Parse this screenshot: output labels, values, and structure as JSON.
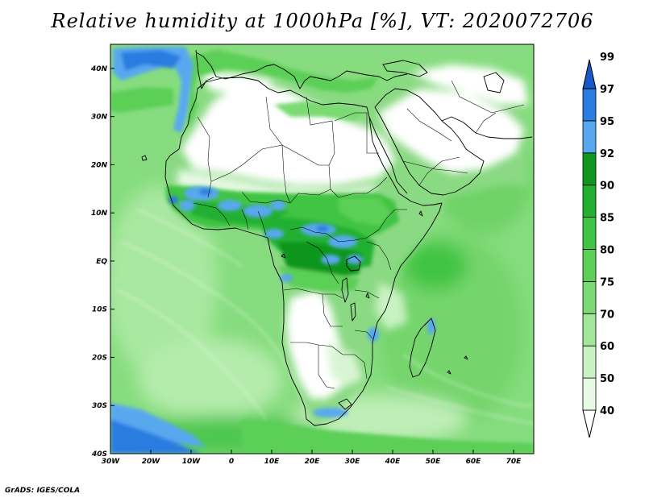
{
  "title": "Relative humidity at 1000hPa [%], VT: 2020072706",
  "credit": "GrADS: IGES/COLA",
  "map": {
    "type": "filled-contour-map",
    "lon_range": [
      -30,
      75
    ],
    "lat_range": [
      -40,
      45
    ],
    "lon_ticks": [
      {
        "value": -30,
        "label": "30W"
      },
      {
        "value": -20,
        "label": "20W"
      },
      {
        "value": -10,
        "label": "10W"
      },
      {
        "value": 0,
        "label": "0"
      },
      {
        "value": 10,
        "label": "10E"
      },
      {
        "value": 20,
        "label": "20E"
      },
      {
        "value": 30,
        "label": "30E"
      },
      {
        "value": 40,
        "label": "40E"
      },
      {
        "value": 50,
        "label": "50E"
      },
      {
        "value": 60,
        "label": "60E"
      },
      {
        "value": 70,
        "label": "70E"
      }
    ],
    "lat_ticks": [
      {
        "value": 40,
        "label": "40N"
      },
      {
        "value": 30,
        "label": "30N"
      },
      {
        "value": 20,
        "label": "20N"
      },
      {
        "value": 10,
        "label": "10N"
      },
      {
        "value": 0,
        "label": "EQ"
      },
      {
        "value": -10,
        "label": "10S"
      },
      {
        "value": -20,
        "label": "20S"
      },
      {
        "value": -30,
        "label": "30S"
      },
      {
        "value": -40,
        "label": "40S"
      }
    ]
  },
  "colorbar": {
    "levels": [
      "40",
      "50",
      "60",
      "70",
      "75",
      "80",
      "85",
      "90",
      "92",
      "95",
      "97",
      "99"
    ],
    "colors": [
      "#ffffff",
      "#e8fae6",
      "#c8f2c2",
      "#a2e69a",
      "#7cda73",
      "#5ccf57",
      "#3fc443",
      "#23b030",
      "#10961d",
      "#58a8f0",
      "#2a7ce0",
      "#1858c8"
    ]
  }
}
